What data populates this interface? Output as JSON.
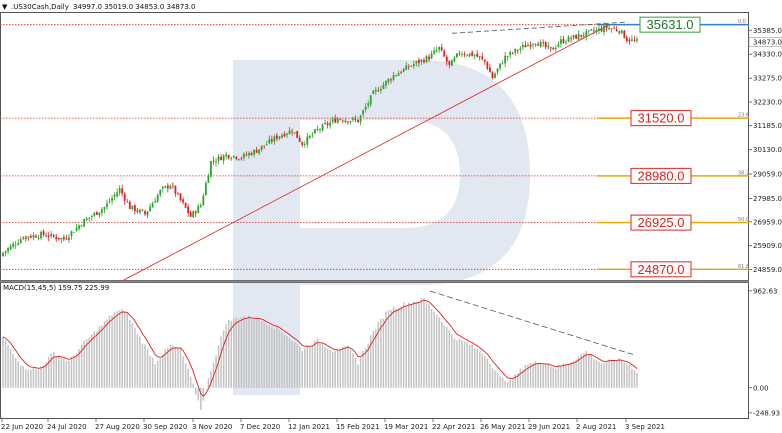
{
  "header": {
    "symbol": ".US30Cash,Daily",
    "ohlc": "34997.0 35019.0 34853.0 34873.0"
  },
  "macd_panel": {
    "label": "MACD(15,45,5)",
    "values": "159.75 225.99"
  },
  "price_axis": {
    "ticks": [
      "35385.0",
      "34330.0",
      "33275.0",
      "32230.0",
      "31185.0",
      "30130.0",
      "29059.0",
      "27985.0",
      "26959.0",
      "25909.0",
      "24859.0"
    ],
    "current_price": "34873.0"
  },
  "macd_axis": {
    "ticks": [
      "962.63",
      "0.00",
      "-248.93"
    ]
  },
  "date_axis": {
    "labels": [
      "22 Jun 2020",
      "24 Jul 2020",
      "27 Aug 2020",
      "30 Sep 2020",
      "3 Nov 2020",
      "7 Dec 2020",
      "12 Jan 2021",
      "15 Feb 2021",
      "19 Mar 2021",
      "22 Apr 2021",
      "26 May 2021",
      "29 Jun 2021",
      "2 Aug 2021",
      "3 Sep 2021"
    ]
  },
  "levels": [
    {
      "value": "35631.0",
      "price": 35631,
      "color": "#2e9e3a",
      "fib": "0.0"
    },
    {
      "value": "31520.0",
      "price": 31520,
      "color": "#e8231f",
      "fib": "23.6"
    },
    {
      "value": "28980.0",
      "price": 28980,
      "color": "#e8231f",
      "fib": "38.2"
    },
    {
      "value": "26925.0",
      "price": 26925,
      "color": "#e8231f",
      "fib": "50.0"
    },
    {
      "value": "24870.0",
      "price": 24870,
      "color": "#e8231f",
      "fib": "61.8"
    }
  ],
  "colors": {
    "bull": "#2aa52a",
    "bear": "#e0201d",
    "macd_hist": "#c3c3c3",
    "signal": "#e0201d",
    "trend": "#e0201d",
    "resistance": "#555555",
    "fib_orange": "#f0a400",
    "fib_blue": "#2f7fd6",
    "watermark": "#dde4ee"
  },
  "chart_data": {
    "type": "candlestick",
    "price_range": [
      24400,
      36100
    ],
    "macd_range": [
      -300,
      1030
    ],
    "close_anchors": [
      [
        0,
        25600
      ],
      [
        8,
        26300
      ],
      [
        16,
        26400
      ],
      [
        24,
        26200
      ],
      [
        32,
        27000
      ],
      [
        40,
        27600
      ],
      [
        46,
        28400
      ],
      [
        50,
        27600
      ],
      [
        56,
        27300
      ],
      [
        62,
        28300
      ],
      [
        66,
        28600
      ],
      [
        70,
        27900
      ],
      [
        74,
        27200
      ],
      [
        78,
        27700
      ],
      [
        82,
        29600
      ],
      [
        88,
        29900
      ],
      [
        94,
        29800
      ],
      [
        100,
        30100
      ],
      [
        108,
        30700
      ],
      [
        114,
        31000
      ],
      [
        118,
        30400
      ],
      [
        124,
        31000
      ],
      [
        132,
        31500
      ],
      [
        140,
        31400
      ],
      [
        146,
        32600
      ],
      [
        154,
        33400
      ],
      [
        162,
        33900
      ],
      [
        168,
        34200
      ],
      [
        172,
        34600
      ],
      [
        176,
        33800
      ],
      [
        180,
        34400
      ],
      [
        186,
        34300
      ],
      [
        190,
        34000
      ],
      [
        193,
        33300
      ],
      [
        198,
        34200
      ],
      [
        204,
        34600
      ],
      [
        210,
        34900
      ],
      [
        216,
        34500
      ],
      [
        220,
        34900
      ],
      [
        226,
        35100
      ],
      [
        232,
        35300
      ],
      [
        238,
        35500
      ],
      [
        243,
        35400
      ],
      [
        246,
        35000
      ],
      [
        250,
        34873
      ]
    ],
    "macd_anchors": [
      [
        0,
        500
      ],
      [
        8,
        200
      ],
      [
        14,
        180
      ],
      [
        20,
        350
      ],
      [
        26,
        260
      ],
      [
        32,
        450
      ],
      [
        38,
        600
      ],
      [
        44,
        750
      ],
      [
        48,
        770
      ],
      [
        54,
        500
      ],
      [
        60,
        250
      ],
      [
        66,
        420
      ],
      [
        70,
        380
      ],
      [
        74,
        100
      ],
      [
        78,
        -210
      ],
      [
        82,
        180
      ],
      [
        88,
        650
      ],
      [
        94,
        710
      ],
      [
        100,
        690
      ],
      [
        106,
        620
      ],
      [
        112,
        520
      ],
      [
        118,
        380
      ],
      [
        124,
        470
      ],
      [
        130,
        370
      ],
      [
        136,
        400
      ],
      [
        140,
        250
      ],
      [
        146,
        560
      ],
      [
        152,
        780
      ],
      [
        158,
        830
      ],
      [
        166,
        880
      ],
      [
        172,
        700
      ],
      [
        178,
        500
      ],
      [
        184,
        430
      ],
      [
        190,
        330
      ],
      [
        196,
        100
      ],
      [
        200,
        60
      ],
      [
        206,
        230
      ],
      [
        212,
        260
      ],
      [
        218,
        200
      ],
      [
        224,
        260
      ],
      [
        230,
        360
      ],
      [
        236,
        240
      ],
      [
        242,
        280
      ],
      [
        246,
        250
      ],
      [
        250,
        160
      ]
    ]
  }
}
